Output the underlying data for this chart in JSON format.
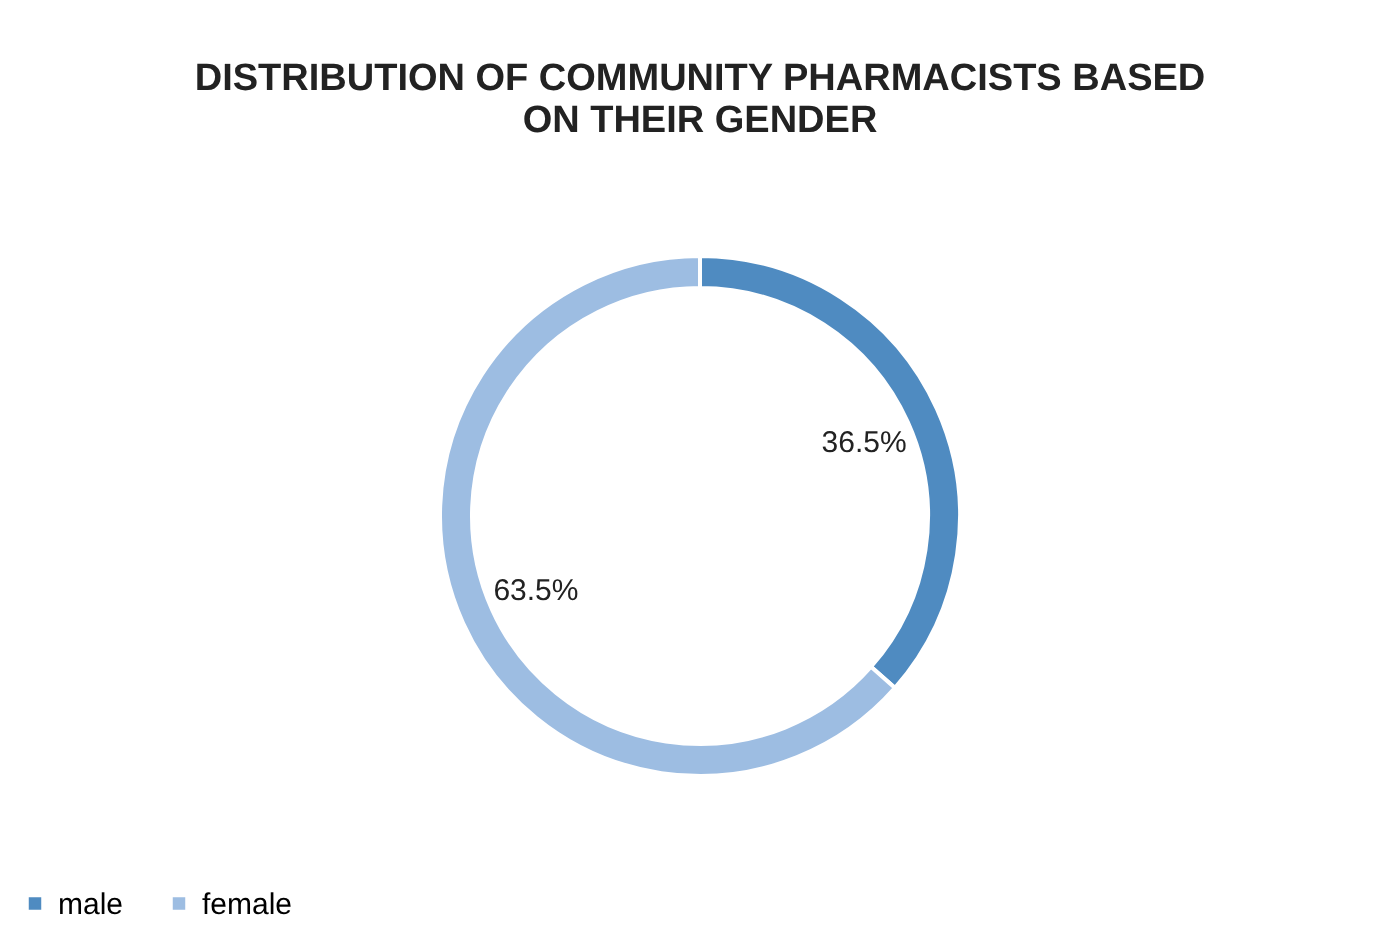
{
  "chart_data": {
    "type": "donut",
    "title": "DISTRIBUTION OF COMMUNITY PHARMACISTS BASED\nON THEIR GENDER",
    "categories": [
      "male",
      "female"
    ],
    "values": [
      36.5,
      63.5
    ],
    "colors": [
      "#4f8bc1",
      "#9dbde2"
    ],
    "value_labels": [
      "36.5%",
      "63.5%"
    ],
    "legend": "bottom"
  }
}
